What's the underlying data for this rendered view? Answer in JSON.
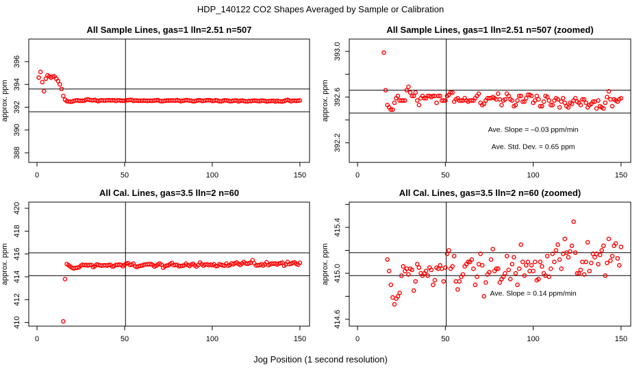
{
  "title": "HDP_140122  CO2 Shapes Averaged by Sample or Calibration",
  "xlabel": "Jog Position (1 second resolution)",
  "colors": {
    "points": "#ff0000",
    "lines": "#000000"
  },
  "chart_data": [
    {
      "type": "scatter",
      "title": "All Sample Lines, gas=1 lln=2.51 n=507",
      "ylabel": "approx. ppm",
      "series": "sample",
      "xlim": [
        -4.7,
        155.5
      ],
      "ylim": [
        387.16,
        397.98
      ],
      "xticks": [
        0,
        50,
        100,
        150
      ],
      "xtick_labels": [
        "0",
        "50",
        "100",
        "150"
      ],
      "yticks": [
        396,
        394,
        392,
        390,
        388
      ],
      "ytick_labels": [
        "396",
        "394",
        "392",
        "390",
        "388"
      ],
      "hlines": [
        393.6,
        391.6
      ],
      "vline": 50.5,
      "annotations": []
    },
    {
      "type": "scatter",
      "title": "All Sample Lines, gas=1 lln=2.51 n=507 (zoomed)",
      "ylabel": "approx. ppm",
      "series": "sample",
      "xlim": [
        -4.7,
        155.5
      ],
      "ylim": [
        392.028,
        393.108
      ],
      "xticks": [
        0,
        50,
        100,
        150
      ],
      "xtick_labels": [
        "0",
        "50",
        "100",
        "150"
      ],
      "yticks": [
        393.0,
        392.8,
        392.6,
        392.4,
        392.2
      ],
      "ytick_labels": [
        "393.0",
        "",
        "392.6",
        "",
        "392.2"
      ],
      "hlines": [
        392.66,
        392.46
      ],
      "vline": 50.5,
      "annotations": [
        {
          "text": "Ave. Slope =  –0.03  ppm/min",
          "x": 100,
          "y": 392.32
        },
        {
          "text": "Ave. Std. Dev. =  0.65  ppm",
          "x": 100,
          "y": 392.17
        }
      ]
    },
    {
      "type": "scatter",
      "title": "All Cal. Lines, gas=3.5 lln=2 n=60",
      "ylabel": "approx. ppm",
      "series": "cal",
      "xlim": [
        -4.7,
        155.5
      ],
      "ylim": [
        409.68,
        420.54
      ],
      "xticks": [
        0,
        50,
        100,
        150
      ],
      "xtick_labels": [
        "0",
        "50",
        "100",
        "150"
      ],
      "yticks": [
        420,
        418,
        416,
        414,
        412,
        410
      ],
      "ytick_labels": [
        "420",
        "418",
        "416",
        "414",
        "412",
        "410"
      ],
      "hlines": [
        416.1,
        414.1
      ],
      "vline": 50.5,
      "annotations": []
    },
    {
      "type": "scatter",
      "title": "All Cal. Lines, gas=3.5 lln=2 n=60 (zoomed)",
      "ylabel": "approx. ppm",
      "series": "cal",
      "xlim": [
        -4.7,
        155.5
      ],
      "ylim": [
        414.54,
        415.62
      ],
      "xticks": [
        0,
        50,
        100,
        150
      ],
      "xtick_labels": [
        "0",
        "50",
        "100",
        "150"
      ],
      "yticks": [
        415.6,
        415.4,
        415.2,
        415.0,
        414.8,
        414.6
      ],
      "ytick_labels": [
        "",
        "415.4",
        "",
        "415.0",
        "",
        "414.6"
      ],
      "hlines": [
        415.18,
        414.98
      ],
      "vline": 50.5,
      "annotations": [
        {
          "text": "Ave. Slope =  0.14  ppm/min",
          "x": 100,
          "y": 414.83
        }
      ]
    }
  ],
  "series_data": {
    "sample": {
      "x_start": 1,
      "y": [
        394.6,
        395.1,
        394.2,
        393.4,
        394.5,
        394.8,
        394.7,
        394.6,
        394.7,
        394.7,
        394.5,
        394.3,
        394.0,
        393.6,
        392.99,
        392.66,
        392.53,
        392.51,
        392.49,
        392.49,
        392.55,
        392.59,
        392.61,
        392.57,
        392.57,
        392.57,
        392.57,
        392.66,
        392.69,
        392.64,
        392.61,
        392.61,
        392.64,
        392.57,
        392.53,
        392.59,
        392.61,
        392.59,
        392.59,
        392.61,
        392.61,
        392.6,
        392.61,
        392.61,
        392.55,
        392.61,
        392.61,
        392.57,
        392.57,
        392.57,
        392.61,
        392.62,
        392.64,
        392.64,
        392.56,
        392.58,
        392.59,
        392.57,
        392.57,
        392.57,
        392.59,
        392.57,
        392.56,
        392.57,
        392.57,
        392.57,
        392.59,
        392.61,
        392.63,
        392.55,
        392.53,
        392.54,
        392.57,
        392.59,
        392.59,
        392.59,
        392.6,
        392.59,
        392.58,
        392.63,
        392.58,
        392.53,
        392.57,
        392.58,
        392.63,
        392.61,
        392.58,
        392.57,
        392.52,
        392.53,
        392.57,
        392.61,
        392.61,
        392.56,
        392.56,
        392.59,
        392.62,
        392.62,
        392.61,
        392.55,
        392.57,
        392.61,
        392.58,
        392.52,
        392.52,
        392.56,
        392.61,
        392.6,
        392.57,
        392.53,
        392.53,
        392.57,
        392.59,
        392.58,
        392.51,
        392.56,
        392.59,
        392.55,
        392.52,
        392.51,
        392.55,
        392.54,
        392.57,
        392.59,
        392.56,
        392.55,
        392.53,
        392.58,
        392.58,
        392.55,
        392.51,
        392.53,
        392.54,
        392.56,
        392.56,
        392.5,
        392.57,
        392.52,
        392.51,
        392.5,
        392.55,
        392.6,
        392.65,
        392.58,
        392.52,
        392.58,
        392.57,
        392.56,
        392.58,
        392.59
      ]
    },
    "cal": {
      "x_start": 15,
      "y": [
        410.1,
        413.8,
        415.12,
        415.02,
        414.9,
        414.79,
        414.73,
        414.78,
        414.8,
        414.83,
        414.98,
        415.06,
        415.02,
        415.04,
        414.99,
        415.04,
        415.03,
        414.85,
        414.93,
        415.08,
        415.05,
        415.0,
        414.98,
        415.0,
        415.02,
        414.98,
        415.05,
        415.03,
        414.9,
        414.94,
        415.05,
        415.04,
        415.07,
        415.04,
        414.93,
        415.05,
        415.17,
        415.2,
        415.04,
        415.06,
        415.15,
        414.93,
        414.86,
        414.93,
        414.97,
        414.99,
        415.06,
        415.08,
        415.1,
        415.1,
        415.12,
        415.04,
        414.9,
        414.97,
        415.08,
        415.17,
        415.07,
        414.8,
        414.92,
        414.99,
        415.01,
        415.12,
        415.21,
        415.02,
        415.04,
        415.04,
        414.92,
        414.95,
        414.97,
        415.0,
        415.15,
        415.03,
        414.95,
        415.08,
        415.14,
        415.0,
        414.9,
        415.04,
        415.25,
        415.1,
        414.98,
        415.07,
        415.1,
        415.02,
        415.07,
        415.02,
        415.1,
        414.94,
        414.95,
        415.1,
        415.06,
        415.0,
        414.98,
        415.15,
        414.97,
        415.04,
        415.17,
        415.1,
        415.2,
        415.25,
        415.12,
        415.04,
        415.17,
        415.3,
        415.18,
        415.14,
        415.19,
        415.24,
        415.45,
        415.18,
        415.0,
        415.0,
        415.03,
        415.1,
        414.99,
        415.1,
        415.27,
        415.02,
        415.09,
        415.17,
        415.14,
        415.17,
        415.08,
        415.16,
        415.2,
        415.24,
        414.98,
        415.09,
        415.3,
        415.11,
        415.15,
        415.24,
        415.26,
        415.13,
        415.07,
        415.23
      ]
    }
  }
}
